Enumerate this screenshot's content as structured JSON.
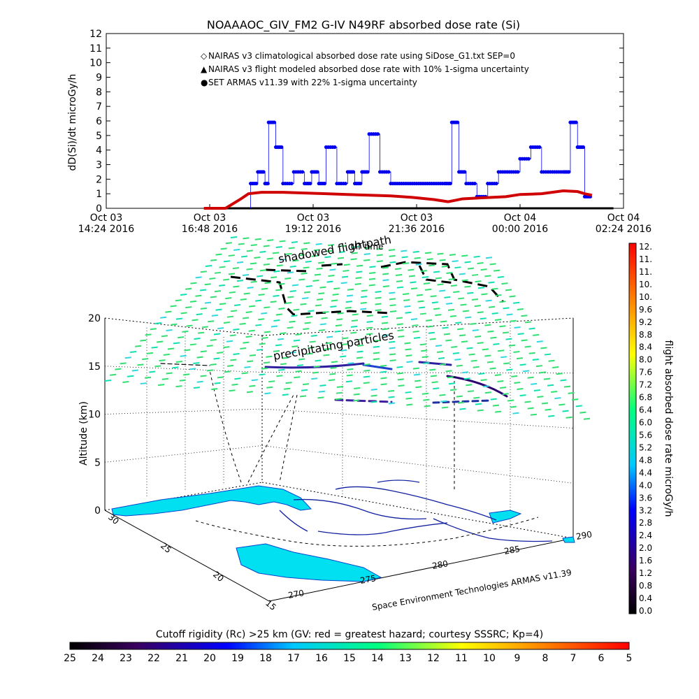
{
  "chart_data": [
    {
      "type": "line",
      "title": "NOAAAOC_GIV_FM2 G-IV    N49RF  absorbed dose rate (Si)",
      "ylabel": "dD(Si)/dt microGy/h",
      "ylim": [
        0,
        12
      ],
      "y_ticks": [
        "0",
        "1",
        "2",
        "3",
        "4",
        "5",
        "6",
        "7",
        "8",
        "9",
        "10",
        "11",
        "12"
      ],
      "x_ticks": [
        {
          "date": "Oct 03",
          "time": "14:24 2016"
        },
        {
          "date": "Oct 03",
          "time": "16:48 2016"
        },
        {
          "date": "Oct 03",
          "time": "19:12 2016"
        },
        {
          "date": "Oct 03",
          "time": "21:36 2016"
        },
        {
          "date": "Oct 04",
          "time": "00:00 2016"
        },
        {
          "date": "Oct 04",
          "time": "02:24 2016"
        }
      ],
      "xlim": [
        "2016-10-03 14:24",
        "2016-10-04 02:24"
      ],
      "legend": [
        {
          "symbol": "◇",
          "color": "#d00000",
          "label": "NAIRAS v3 climatological absorbed dose rate using SiDose_G1.txt SEP=0"
        },
        {
          "symbol": "▲",
          "color": "#000000",
          "label": "NAIRAS v3 flight modeled absorbed dose rate with 10% 1-sigma uncertainty"
        },
        {
          "symbol": "●",
          "color": "#0000ee",
          "label": "SET ARMAS v11.39 with 22% 1-sigma uncertainty"
        }
      ],
      "series": [
        {
          "name": "NAIRAS v3 climatological absorbed dose rate using SiDose_G1.txt SEP=0",
          "color": "#d00000",
          "x": [
            "2016-10-03 16:40",
            "2016-10-03 17:10",
            "2016-10-03 17:30",
            "2016-10-03 17:42",
            "2016-10-03 18:00",
            "2016-10-03 18:30",
            "2016-10-03 19:00",
            "2016-10-03 19:30",
            "2016-10-03 20:00",
            "2016-10-03 20:30",
            "2016-10-03 21:00",
            "2016-10-03 21:30",
            "2016-10-03 22:00",
            "2016-10-03 22:20",
            "2016-10-03 22:40",
            "2016-10-03 23:00",
            "2016-10-03 23:20",
            "2016-10-03 23:40",
            "2016-10-04 00:00",
            "2016-10-04 00:30",
            "2016-10-04 01:00",
            "2016-10-04 01:20",
            "2016-10-04 01:30",
            "2016-10-04 01:40"
          ],
          "y": [
            0,
            0,
            0.6,
            1.0,
            1.1,
            1.1,
            1.05,
            1.0,
            0.95,
            0.9,
            0.85,
            0.75,
            0.6,
            0.45,
            0.65,
            0.7,
            0.75,
            0.8,
            0.95,
            1.0,
            1.2,
            1.15,
            1.0,
            0.9
          ]
        },
        {
          "name": "NAIRAS v3 flight modeled absorbed dose rate with 10% 1-sigma uncertainty",
          "color": "#000000",
          "x": [
            "2016-10-03 16:40",
            "2016-10-04 02:10"
          ],
          "y": [
            0,
            0
          ]
        },
        {
          "name": "SET ARMAS v11.39 with 22% 1-sigma uncertainty",
          "color": "#0000ee",
          "x": [
            "2016-10-03 17:45",
            "2016-10-03 17:55",
            "2016-10-03 18:05",
            "2016-10-03 18:10",
            "2016-10-03 18:20",
            "2016-10-03 18:30",
            "2016-10-03 18:45",
            "2016-10-03 19:00",
            "2016-10-03 19:10",
            "2016-10-03 19:20",
            "2016-10-03 19:30",
            "2016-10-03 19:45",
            "2016-10-03 20:00",
            "2016-10-03 20:10",
            "2016-10-03 20:20",
            "2016-10-03 20:30",
            "2016-10-03 20:45",
            "2016-10-03 21:00",
            "2016-10-03 21:15",
            "2016-10-03 21:30",
            "2016-10-03 21:45",
            "2016-10-03 22:00",
            "2016-10-03 22:15",
            "2016-10-03 22:25",
            "2016-10-03 22:35",
            "2016-10-03 22:45",
            "2016-10-03 23:00",
            "2016-10-03 23:15",
            "2016-10-03 23:30",
            "2016-10-03 23:45",
            "2016-10-04 00:00",
            "2016-10-04 00:15",
            "2016-10-04 00:30",
            "2016-10-04 00:45",
            "2016-10-04 01:00",
            "2016-10-04 01:10",
            "2016-10-04 01:20",
            "2016-10-04 01:30"
          ],
          "y": [
            1.7,
            2.5,
            1.7,
            5.9,
            4.2,
            1.7,
            2.5,
            1.7,
            2.5,
            1.7,
            4.2,
            1.7,
            2.5,
            1.7,
            2.5,
            5.1,
            2.5,
            1.7,
            1.7,
            1.7,
            1.7,
            1.7,
            1.7,
            5.9,
            2.5,
            1.7,
            0.8,
            1.7,
            2.5,
            2.5,
            3.4,
            4.2,
            2.5,
            2.5,
            2.5,
            5.9,
            4.2,
            0.8
          ]
        }
      ]
    },
    {
      "type": "scatter",
      "title": "shadowed flightpath",
      "annotation": "precipitating particles",
      "xlabel": "UT time",
      "zlabel": "Altitude (km)",
      "z_ticks": [
        "0",
        "5",
        "10",
        "15",
        "20"
      ],
      "lat_ticks": [
        "30",
        "25",
        "20",
        "15"
      ],
      "lon_ticks": [
        "270",
        "275",
        "280",
        "285",
        "290"
      ],
      "zlim": [
        0,
        20
      ],
      "footer": "Space Environment Technologies ARMAS v11.39"
    },
    {
      "type": "heatmap",
      "colorbar_label": "flight absorbed dose rate microGy/h",
      "colorbar_ticks": [
        "0.0",
        "0.4",
        "0.8",
        "1.2",
        "1.6",
        "2.0",
        "2.4",
        "2.8",
        "3.2",
        "3.6",
        "4.0",
        "4.4",
        "4.8",
        "5.2",
        "5.6",
        "6.0",
        "6.4",
        "6.8",
        "7.2",
        "7.6",
        "8.0",
        "8.4",
        "8.8",
        "9.2",
        "9.6",
        "10.",
        "10.",
        "11.",
        "11.",
        "12."
      ],
      "colorbar_colors": [
        "#000000",
        "#3a0060",
        "#0000ff",
        "#00c8ff",
        "#00ff80",
        "#ffff00",
        "#ff8000",
        "#ff0000"
      ]
    },
    {
      "type": "heatmap",
      "colorbar_label": "Cutoff rigidity (Rc) >25 km (GV: red = greatest hazard; courtesy SSSRC; Kp=4)",
      "colorbar_ticks": [
        "25",
        "24",
        "23",
        "22",
        "21",
        "20",
        "19",
        "18",
        "17",
        "16",
        "15",
        "14",
        "13",
        "12",
        "11",
        "10",
        "9",
        "8",
        "7",
        "6",
        "5"
      ],
      "colorbar_colors": [
        "#000000",
        "#3a0060",
        "#0000ff",
        "#00c8ff",
        "#00ff80",
        "#ffff00",
        "#ff8000",
        "#ff0000"
      ]
    }
  ]
}
